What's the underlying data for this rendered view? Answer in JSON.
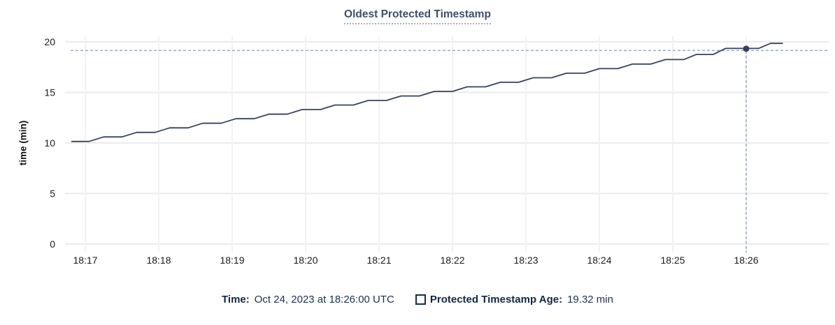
{
  "title": {
    "text": "Oldest Protected Timestamp"
  },
  "legend": {
    "time_label": "Time:",
    "time_value": "Oct 24, 2023 at 18:26:00 UTC",
    "series_label": "Protected Timestamp Age:",
    "series_value": "19.32 min"
  },
  "colors": {
    "title": "#3e5068",
    "legend_text": "#152a4c",
    "line": "#36425c",
    "highlight_dot": "#36425c",
    "crosshair": "#97acbd",
    "grid_horizontal": "#ebebeb",
    "grid_vertical": "#f2f2f2",
    "axis_text": "#1a1a1a",
    "background": "#ffffff"
  },
  "chart_data": {
    "type": "line",
    "title": "Oldest Protected Timestamp",
    "xlabel": "",
    "ylabel": "time (min)",
    "ylim": [
      0,
      20
    ],
    "y_ticks": [
      0,
      5,
      10,
      15,
      20
    ],
    "x_ticks": [
      "18:17",
      "18:18",
      "18:19",
      "18:20",
      "18:21",
      "18:22",
      "18:23",
      "18:24",
      "18:25",
      "18:26"
    ],
    "grid": true,
    "legend_position": "bottom",
    "series": [
      {
        "name": "Protected Timestamp Age",
        "unit": "min",
        "points": [
          [
            -0.19,
            10.15
          ],
          [
            0.05,
            10.15
          ],
          [
            0.25,
            10.6
          ],
          [
            0.5,
            10.6
          ],
          [
            0.7,
            11.05
          ],
          [
            0.95,
            11.05
          ],
          [
            1.15,
            11.5
          ],
          [
            1.4,
            11.5
          ],
          [
            1.6,
            11.95
          ],
          [
            1.85,
            11.95
          ],
          [
            2.05,
            12.4
          ],
          [
            2.3,
            12.4
          ],
          [
            2.5,
            12.85
          ],
          [
            2.75,
            12.85
          ],
          [
            2.95,
            13.3
          ],
          [
            3.2,
            13.3
          ],
          [
            3.4,
            13.75
          ],
          [
            3.65,
            13.75
          ],
          [
            3.85,
            14.2
          ],
          [
            4.1,
            14.2
          ],
          [
            4.3,
            14.65
          ],
          [
            4.55,
            14.65
          ],
          [
            4.75,
            15.1
          ],
          [
            5.0,
            15.1
          ],
          [
            5.2,
            15.55
          ],
          [
            5.45,
            15.55
          ],
          [
            5.65,
            16.0
          ],
          [
            5.9,
            16.0
          ],
          [
            6.1,
            16.45
          ],
          [
            6.35,
            16.45
          ],
          [
            6.55,
            16.9
          ],
          [
            6.8,
            16.9
          ],
          [
            7.0,
            17.35
          ],
          [
            7.25,
            17.35
          ],
          [
            7.45,
            17.8
          ],
          [
            7.7,
            17.8
          ],
          [
            7.9,
            18.25
          ],
          [
            8.15,
            18.25
          ],
          [
            8.32,
            18.75
          ],
          [
            8.55,
            18.75
          ],
          [
            8.72,
            19.35
          ],
          [
            9.17,
            19.35
          ],
          [
            9.33,
            19.85
          ],
          [
            9.5,
            19.85
          ]
        ],
        "x_unit": "minutes since 18:17"
      }
    ],
    "highlight": {
      "time": "18:26:00",
      "date": "Oct 24, 2023",
      "value_min": 19.32,
      "t": 9.0
    }
  }
}
